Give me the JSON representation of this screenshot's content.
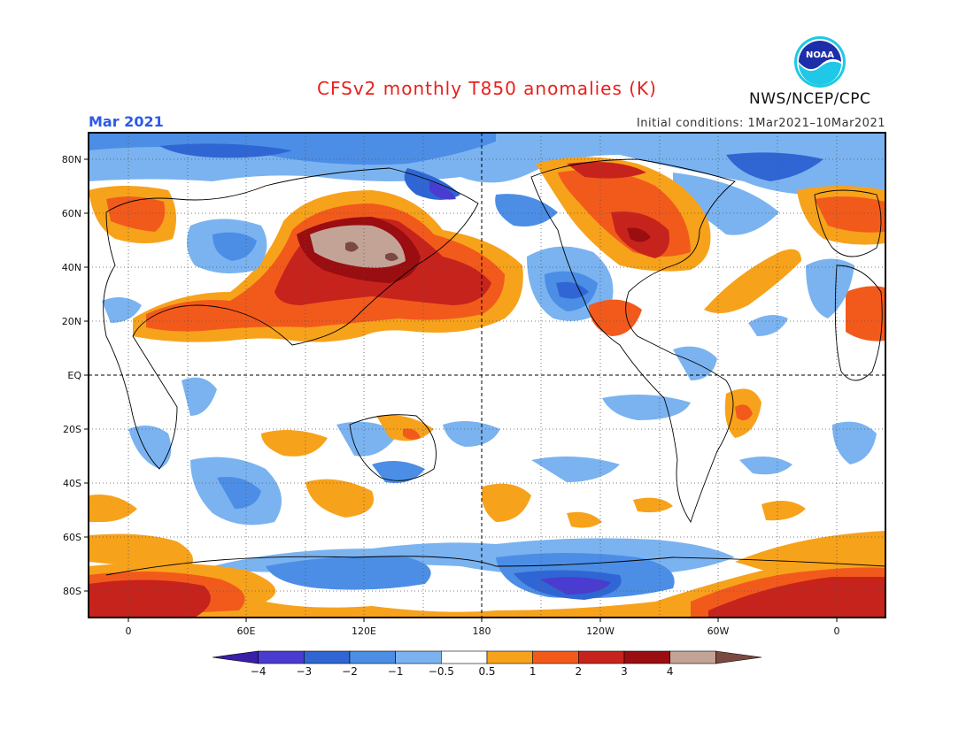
{
  "header": {
    "title": "CFSv2 monthly T850 anomalies (K)",
    "valid_month": "Mar 2021",
    "initial_conditions": "Initial conditions: 1Mar2021–10Mar2021",
    "agency": "NWS/NCEP/CPC",
    "logo_text": "NOAA"
  },
  "map": {
    "projection": "cylindrical equidistant",
    "lon_range": [
      -20,
      380
    ],
    "lat_range": [
      -90,
      90
    ],
    "lon_ticks": [
      "0",
      "60E",
      "120E",
      "180",
      "120W",
      "60W",
      "0"
    ],
    "lat_ticks": [
      "80N",
      "60N",
      "40N",
      "20N",
      "EQ",
      "20S",
      "40S",
      "60S",
      "80S"
    ],
    "grid": "dotted, 30 degree spacing; dashed equator and dateline"
  },
  "colorbar": {
    "labels": [
      "−4",
      "−3",
      "−2",
      "−1",
      "−0.5",
      "0.5",
      "1",
      "2",
      "3",
      "4"
    ],
    "colors": [
      "#3a1fa8",
      "#4a3cd0",
      "#2f66d4",
      "#4c8ee6",
      "#7ab3f0",
      "#ffffff",
      "#f7a21b",
      "#f25a1c",
      "#c7231d",
      "#9a0d10",
      "#c4a397",
      "#7a4a40"
    ]
  }
}
